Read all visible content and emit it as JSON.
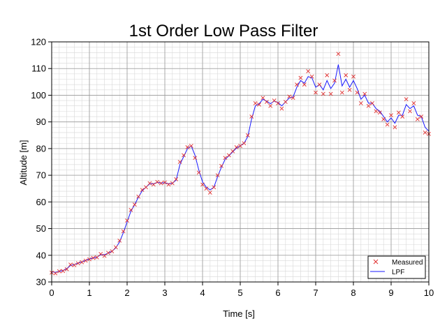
{
  "chart_data": {
    "type": "line",
    "title": "1st Order Low Pass Filter",
    "xlabel": "Time [s]",
    "ylabel": "Altitude [m]",
    "xlim": [
      0,
      10
    ],
    "ylim": [
      30,
      120
    ],
    "xticks": [
      0,
      1,
      2,
      3,
      4,
      5,
      6,
      7,
      8,
      9,
      10
    ],
    "yticks": [
      30,
      40,
      50,
      60,
      70,
      80,
      90,
      100,
      110,
      120
    ],
    "grid": true,
    "minor_grid": true,
    "legend": "bottom-right",
    "colors": {
      "measured": "#e03030",
      "lpf": "#1a1aff",
      "grid_major": "#9a9a9a",
      "grid_minor": "#d8d8d8"
    },
    "x": [
      0.0,
      0.1,
      0.2,
      0.3,
      0.4,
      0.5,
      0.6,
      0.7,
      0.8,
      0.9,
      1.0,
      1.1,
      1.2,
      1.3,
      1.4,
      1.5,
      1.6,
      1.7,
      1.8,
      1.9,
      2.0,
      2.1,
      2.2,
      2.3,
      2.4,
      2.5,
      2.6,
      2.7,
      2.8,
      2.9,
      3.0,
      3.1,
      3.2,
      3.3,
      3.4,
      3.5,
      3.6,
      3.7,
      3.8,
      3.9,
      4.0,
      4.1,
      4.2,
      4.3,
      4.4,
      4.5,
      4.6,
      4.7,
      4.8,
      4.9,
      5.0,
      5.1,
      5.2,
      5.3,
      5.4,
      5.5,
      5.6,
      5.7,
      5.8,
      5.9,
      6.0,
      6.1,
      6.2,
      6.3,
      6.4,
      6.5,
      6.6,
      6.7,
      6.8,
      6.9,
      7.0,
      7.1,
      7.2,
      7.3,
      7.4,
      7.5,
      7.6,
      7.7,
      7.8,
      7.9,
      8.0,
      8.1,
      8.2,
      8.3,
      8.4,
      8.5,
      8.6,
      8.7,
      8.8,
      8.9,
      9.0,
      9.1,
      9.2,
      9.3,
      9.4,
      9.5,
      9.6,
      9.7,
      9.8,
      9.9,
      10.0
    ],
    "series": [
      {
        "name": "Measured",
        "marker": "x",
        "values": [
          33.5,
          33.2,
          34.0,
          34.1,
          34.8,
          36.5,
          36.3,
          37.0,
          37.4,
          38.0,
          38.5,
          39.0,
          39.2,
          40.5,
          39.8,
          40.9,
          41.5,
          43.0,
          45.5,
          49.0,
          53.0,
          57.0,
          59.0,
          62.0,
          64.5,
          65.5,
          67.0,
          66.5,
          67.5,
          67.0,
          67.3,
          66.5,
          67.0,
          68.5,
          75.0,
          77.5,
          80.5,
          81.0,
          76.5,
          71.0,
          66.5,
          65.0,
          63.5,
          65.5,
          70.0,
          73.5,
          76.5,
          77.5,
          79.0,
          80.5,
          81.0,
          82.0,
          85.0,
          92.0,
          97.0,
          96.5,
          99.0,
          97.5,
          96.0,
          98.0,
          97.0,
          95.0,
          97.5,
          99.5,
          99.0,
          104.0,
          106.5,
          104.0,
          109.0,
          107.0,
          101.0,
          104.0,
          100.5,
          107.5,
          100.5,
          105.5,
          115.5,
          101.0,
          107.5,
          102.0,
          107.0,
          101.0,
          97.0,
          100.5,
          96.0,
          97.0,
          94.0,
          93.5,
          91.0,
          89.0,
          92.5,
          88.0,
          93.5,
          92.0,
          98.5,
          94.0,
          97.0,
          91.0,
          92.0,
          86.0,
          85.5
        ]
      },
      {
        "name": "LPF",
        "values": [
          33.8,
          33.6,
          34.0,
          34.3,
          35.0,
          36.2,
          36.5,
          37.1,
          37.5,
          38.1,
          38.6,
          39.0,
          39.3,
          40.2,
          40.2,
          40.8,
          41.5,
          42.8,
          45.0,
          48.5,
          52.5,
          56.5,
          59.0,
          61.8,
          64.2,
          65.5,
          66.8,
          66.8,
          67.3,
          67.1,
          67.2,
          66.8,
          67.0,
          68.2,
          74.0,
          77.0,
          80.0,
          81.0,
          77.5,
          72.0,
          67.5,
          65.5,
          64.5,
          65.5,
          69.5,
          73.0,
          76.0,
          77.3,
          78.8,
          80.2,
          81.0,
          82.0,
          84.5,
          91.0,
          96.0,
          96.8,
          98.5,
          97.8,
          96.8,
          97.8,
          97.3,
          96.0,
          97.5,
          99.0,
          99.3,
          103.0,
          105.5,
          104.5,
          107.0,
          106.5,
          103.0,
          104.0,
          102.0,
          105.5,
          102.5,
          104.5,
          111.5,
          103.5,
          106.0,
          103.0,
          105.5,
          102.5,
          98.5,
          100.0,
          97.0,
          97.0,
          95.0,
          94.0,
          92.0,
          90.0,
          91.5,
          89.5,
          92.5,
          92.5,
          96.5,
          95.0,
          96.0,
          92.5,
          92.0,
          88.0,
          86.5
        ]
      }
    ]
  }
}
